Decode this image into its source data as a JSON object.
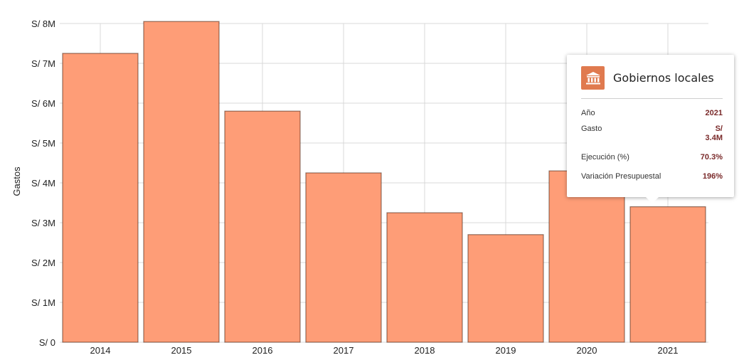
{
  "chart_data": {
    "type": "bar",
    "categories": [
      "2014",
      "2015",
      "2016",
      "2017",
      "2018",
      "2019",
      "2020",
      "2021"
    ],
    "values": [
      7.25,
      8.05,
      5.8,
      4.25,
      3.25,
      2.7,
      4.3,
      3.4
    ],
    "value_unit": "S/ millions",
    "ylabel": "Gastos",
    "ylim": [
      0,
      8
    ],
    "yticks": [
      "S/ 0",
      "S/ 1M",
      "S/ 2M",
      "S/ 3M",
      "S/ 4M",
      "S/ 5M",
      "S/ 6M",
      "S/ 7M",
      "S/ 8M"
    ],
    "grid": true,
    "bar_color": "#fe9d77",
    "bar_border_color": "#ffffff",
    "grid_color": "#d9d9d9"
  },
  "tooltip": {
    "icon": "government-building-icon",
    "icon_color": "#e07a4f",
    "title": "Gobiernos locales",
    "rows": [
      {
        "label": "Año",
        "value": "2021"
      },
      {
        "label": "Gasto",
        "value": "S/ 3.4M"
      },
      {
        "label": "Ejecución (%)",
        "value": "70.3%"
      },
      {
        "label": "Variación Presupuestal",
        "value": "196%"
      }
    ]
  }
}
